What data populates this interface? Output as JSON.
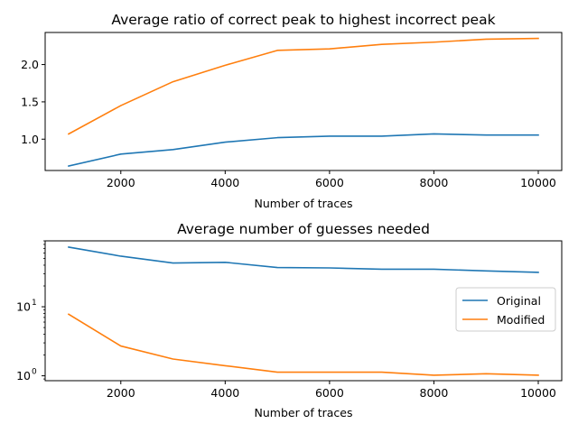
{
  "chart_data": [
    {
      "type": "line",
      "title": "Average ratio of correct peak to highest incorrect peak",
      "xlabel": "Number of traces",
      "ylabel": "",
      "yscale": "linear",
      "xlim": [
        550,
        10450
      ],
      "ylim": [
        0.58,
        2.43
      ],
      "x": [
        1000,
        2000,
        3000,
        4000,
        5000,
        6000,
        7000,
        8000,
        9000,
        10000
      ],
      "xticks": [
        2000,
        4000,
        6000,
        8000,
        10000
      ],
      "xtick_labels": [
        "2000",
        "4000",
        "6000",
        "8000",
        "10000"
      ],
      "yticks": [
        1.0,
        1.5,
        2.0
      ],
      "ytick_labels": [
        "1.0",
        "1.5",
        "2.0"
      ],
      "grid": false,
      "series": [
        {
          "name": "Original",
          "color": "#1f77b4",
          "values": [
            0.64,
            0.8,
            0.86,
            0.96,
            1.02,
            1.04,
            1.04,
            1.07,
            1.055,
            1.055
          ]
        },
        {
          "name": "Modified",
          "color": "#ff7f0e",
          "values": [
            1.07,
            1.45,
            1.77,
            1.99,
            2.19,
            2.21,
            2.27,
            2.3,
            2.34,
            2.35
          ]
        }
      ]
    },
    {
      "type": "line",
      "title": "Average number of guesses needed",
      "xlabel": "Number of traces",
      "ylabel": "",
      "yscale": "log",
      "xlim": [
        550,
        10450
      ],
      "ylim": [
        0.85,
        90
      ],
      "x": [
        1000,
        2000,
        3000,
        4000,
        5000,
        6000,
        7000,
        8000,
        9000,
        10000
      ],
      "xticks": [
        2000,
        4000,
        6000,
        8000,
        10000
      ],
      "xtick_labels": [
        "2000",
        "4000",
        "6000",
        "8000",
        "10000"
      ],
      "yticks": [
        1,
        10
      ],
      "grid": false,
      "legend": "center-right",
      "series": [
        {
          "name": "Original",
          "color": "#1f77b4",
          "values": [
            73,
            54,
            43,
            44,
            37,
            36.5,
            35,
            35,
            33,
            31.5
          ]
        },
        {
          "name": "Modified",
          "color": "#ff7f0e",
          "values": [
            7.8,
            2.7,
            1.75,
            1.4,
            1.13,
            1.13,
            1.13,
            1.02,
            1.07,
            1.02
          ]
        }
      ]
    }
  ]
}
